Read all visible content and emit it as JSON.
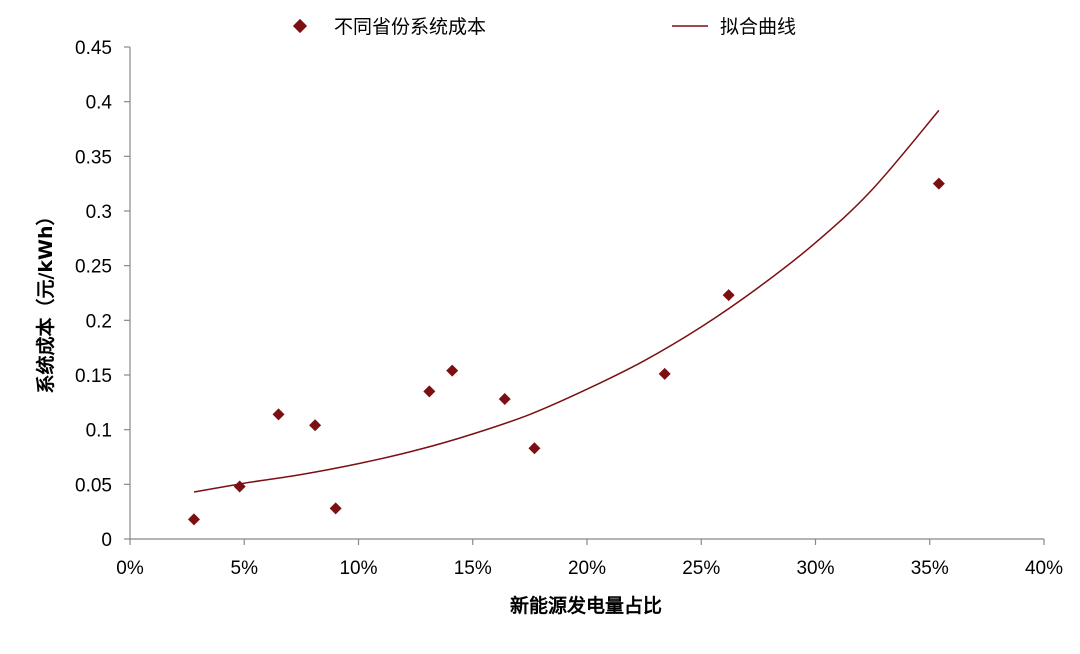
{
  "chart_data": {
    "type": "scatter",
    "xlabel": "新能源发电量占比",
    "ylabel": "系统成本（元/kWh）",
    "xlim": [
      0,
      0.4
    ],
    "ylim": [
      0,
      0.45
    ],
    "x_ticks": [
      0,
      0.05,
      0.1,
      0.15,
      0.2,
      0.25,
      0.3,
      0.35,
      0.4
    ],
    "x_tick_labels": [
      "0%",
      "5%",
      "10%",
      "15%",
      "20%",
      "25%",
      "30%",
      "35%",
      "40%"
    ],
    "y_ticks": [
      0,
      0.05,
      0.1,
      0.15,
      0.2,
      0.25,
      0.3,
      0.35,
      0.4,
      0.45
    ],
    "y_tick_labels": [
      "0",
      "0.05",
      "0.1",
      "0.15",
      "0.2",
      "0.25",
      "0.3",
      "0.35",
      "0.4",
      "0.45"
    ],
    "grid": false,
    "legend_position": "top",
    "series": [
      {
        "name": "不同省份系统成本",
        "type": "scatter",
        "marker": "diamond",
        "color": "#7b0f12",
        "points": [
          {
            "x": 0.028,
            "y": 0.018
          },
          {
            "x": 0.048,
            "y": 0.048
          },
          {
            "x": 0.065,
            "y": 0.114
          },
          {
            "x": 0.081,
            "y": 0.104
          },
          {
            "x": 0.09,
            "y": 0.028
          },
          {
            "x": 0.131,
            "y": 0.135
          },
          {
            "x": 0.141,
            "y": 0.154
          },
          {
            "x": 0.164,
            "y": 0.128
          },
          {
            "x": 0.177,
            "y": 0.083
          },
          {
            "x": 0.234,
            "y": 0.151
          },
          {
            "x": 0.262,
            "y": 0.223
          },
          {
            "x": 0.354,
            "y": 0.325
          }
        ]
      },
      {
        "name": "拟合曲线",
        "type": "line",
        "color": "#7b0f12",
        "points": [
          {
            "x": 0.028,
            "y": 0.043
          },
          {
            "x": 0.05,
            "y": 0.051
          },
          {
            "x": 0.075,
            "y": 0.059
          },
          {
            "x": 0.1,
            "y": 0.069
          },
          {
            "x": 0.125,
            "y": 0.081
          },
          {
            "x": 0.15,
            "y": 0.096
          },
          {
            "x": 0.175,
            "y": 0.114
          },
          {
            "x": 0.2,
            "y": 0.137
          },
          {
            "x": 0.225,
            "y": 0.163
          },
          {
            "x": 0.25,
            "y": 0.194
          },
          {
            "x": 0.275,
            "y": 0.23
          },
          {
            "x": 0.3,
            "y": 0.271
          },
          {
            "x": 0.325,
            "y": 0.32
          },
          {
            "x": 0.354,
            "y": 0.392
          }
        ]
      }
    ]
  }
}
